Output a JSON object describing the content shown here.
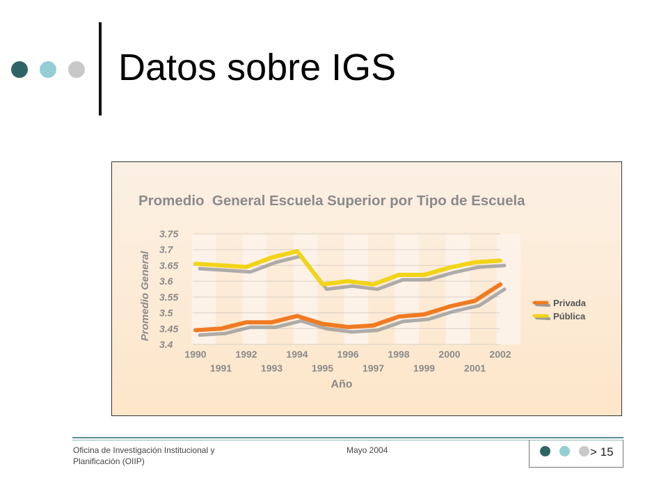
{
  "slide": {
    "title": "Datos sobre IGS"
  },
  "colors": {
    "dot_dark": "#2f6466",
    "dot_light": "#95cdd4",
    "dot_gray": "#c8c8c8",
    "privada": "#f07a22",
    "publica": "#f2d417",
    "shadow": "#9a9a9a"
  },
  "chart_data": {
    "type": "line",
    "title": "Promedio  General Escuela Superior por Tipo de Escuela",
    "xlabel": "Año",
    "ylabel": "Promedio General",
    "x": [
      "1990",
      "1991",
      "1992",
      "1993",
      "1994",
      "1995",
      "1996",
      "1997",
      "1998",
      "1999",
      "2000",
      "2001",
      "2002"
    ],
    "y_ticks": [
      "3.75",
      "3.7",
      "3.65",
      "3.6",
      "3.55",
      "3.5",
      "3.45",
      "3.4"
    ],
    "ylim": [
      3.4,
      3.75
    ],
    "grid": true,
    "legend_position": "right",
    "series": [
      {
        "name": "Privada",
        "values": [
          3.445,
          3.45,
          3.47,
          3.47,
          3.49,
          3.465,
          3.455,
          3.46,
          3.488,
          3.495,
          3.52,
          3.538,
          3.59
        ]
      },
      {
        "name": "Pública",
        "values": [
          3.655,
          3.65,
          3.645,
          3.675,
          3.695,
          3.59,
          3.6,
          3.59,
          3.62,
          3.62,
          3.643,
          3.66,
          3.665
        ]
      }
    ]
  },
  "footer": {
    "office_line1": "Oficina de Investigación Institucional y",
    "office_line2": "Planificación (OIIP)",
    "date": "Mayo 2004",
    "page": "> 15"
  }
}
